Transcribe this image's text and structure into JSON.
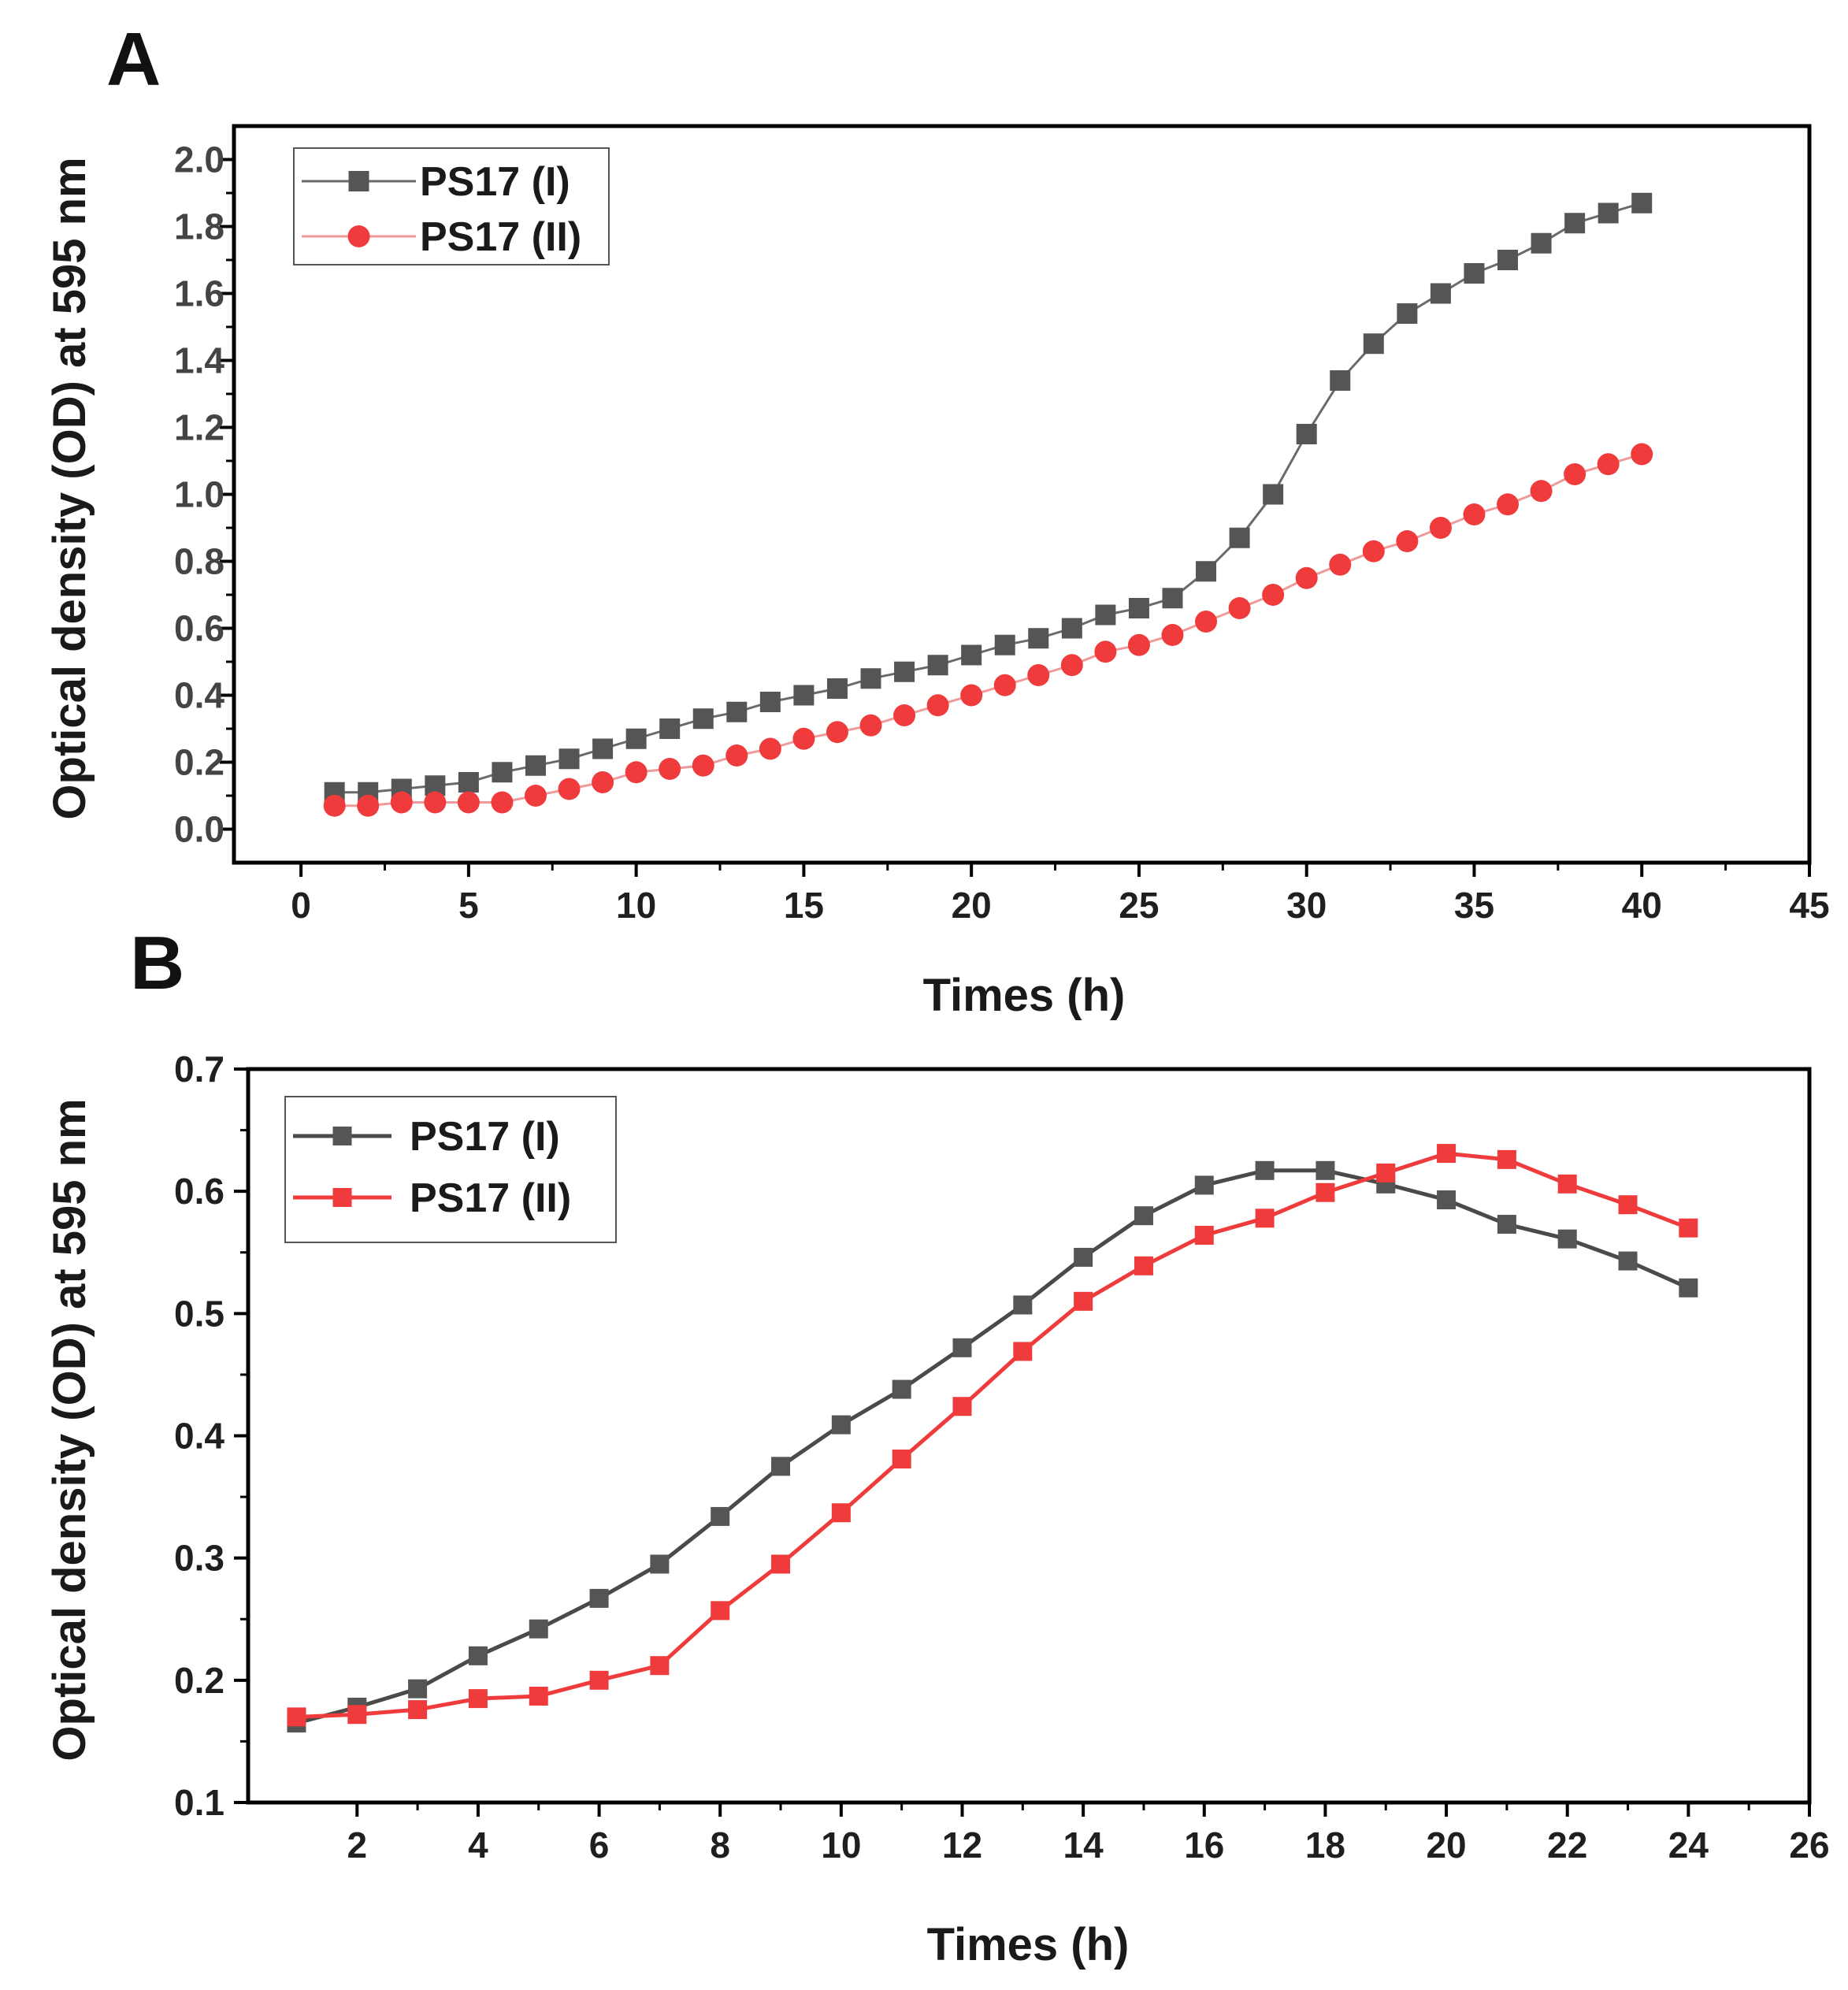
{
  "colors": {
    "series_1": "#555555",
    "series_2": "#ef3b3b",
    "axis": "#000000"
  },
  "chart_data": [
    {
      "panel_label": "A",
      "type": "line",
      "title": "",
      "xlabel": "Times (h)",
      "ylabel": "Optical density (OD) at 595 nm",
      "xlim": [
        -2,
        45
      ],
      "ylim": [
        -0.1,
        2.1
      ],
      "xticks": [
        "0",
        "5",
        "10",
        "15",
        "20",
        "25",
        "30",
        "35",
        "40",
        "45"
      ],
      "yticks": [
        "0.0",
        "0.2",
        "0.4",
        "0.6",
        "0.8",
        "1.0",
        "1.2",
        "1.4",
        "1.6",
        "1.8",
        "2.0"
      ],
      "legend_position": "top-left",
      "x": [
        1,
        2,
        3,
        4,
        5,
        6,
        7,
        8,
        9,
        10,
        11,
        12,
        13,
        14,
        15,
        16,
        17,
        18,
        19,
        20,
        21,
        22,
        23,
        24,
        25,
        26,
        27,
        28,
        29,
        30,
        31,
        32,
        33,
        34,
        35,
        36,
        37,
        38,
        39,
        40
      ],
      "series": [
        {
          "name": "PS17 (I)",
          "marker": "square",
          "values": [
            0.11,
            0.11,
            0.12,
            0.13,
            0.14,
            0.17,
            0.19,
            0.21,
            0.24,
            0.27,
            0.3,
            0.33,
            0.35,
            0.38,
            0.4,
            0.42,
            0.45,
            0.47,
            0.49,
            0.52,
            0.55,
            0.57,
            0.6,
            0.64,
            0.66,
            0.69,
            0.77,
            0.87,
            1.0,
            1.18,
            1.34,
            1.45,
            1.54,
            1.6,
            1.66,
            1.7,
            1.75,
            1.81,
            1.84,
            1.87
          ]
        },
        {
          "name": "PS17 (II)",
          "marker": "circle",
          "values": [
            0.07,
            0.07,
            0.08,
            0.08,
            0.08,
            0.08,
            0.1,
            0.12,
            0.14,
            0.17,
            0.18,
            0.19,
            0.22,
            0.24,
            0.27,
            0.29,
            0.31,
            0.34,
            0.37,
            0.4,
            0.43,
            0.46,
            0.49,
            0.53,
            0.55,
            0.58,
            0.62,
            0.66,
            0.7,
            0.75,
            0.79,
            0.83,
            0.86,
            0.9,
            0.94,
            0.97,
            1.01,
            1.06,
            1.09,
            1.12
          ]
        }
      ]
    },
    {
      "panel_label": "B",
      "type": "line",
      "title": "",
      "xlabel": "Times (h)",
      "ylabel": "Optical density (OD) at 595 nm",
      "xlim": [
        0.2,
        26
      ],
      "ylim": [
        0.1,
        0.7
      ],
      "xticks": [
        "2",
        "4",
        "6",
        "8",
        "10",
        "12",
        "14",
        "16",
        "18",
        "20",
        "22",
        "24",
        "26"
      ],
      "yticks": [
        "0.1",
        "0.2",
        "0.3",
        "0.4",
        "0.5",
        "0.6",
        "0.7"
      ],
      "legend_position": "top-left",
      "x": [
        1,
        2,
        3,
        4,
        5,
        6,
        7,
        8,
        9,
        10,
        11,
        12,
        13,
        14,
        15,
        16,
        17,
        18,
        19,
        20,
        21,
        22,
        23,
        24
      ],
      "series": [
        {
          "name": "PS17 (I)",
          "marker": "square",
          "values": [
            0.165,
            0.178,
            0.193,
            0.22,
            0.242,
            0.267,
            0.295,
            0.334,
            0.375,
            0.409,
            0.438,
            0.472,
            0.507,
            0.546,
            0.58,
            0.605,
            0.617,
            0.617,
            0.606,
            0.593,
            0.573,
            0.561,
            0.543,
            0.521
          ]
        },
        {
          "name": "PS17 (II)",
          "marker": "square",
          "values": [
            0.17,
            0.172,
            0.176,
            0.185,
            0.187,
            0.2,
            0.212,
            0.257,
            0.295,
            0.337,
            0.381,
            0.424,
            0.469,
            0.51,
            0.539,
            0.564,
            0.578,
            0.599,
            0.615,
            0.631,
            0.626,
            0.606,
            0.589,
            0.57
          ]
        }
      ]
    }
  ]
}
